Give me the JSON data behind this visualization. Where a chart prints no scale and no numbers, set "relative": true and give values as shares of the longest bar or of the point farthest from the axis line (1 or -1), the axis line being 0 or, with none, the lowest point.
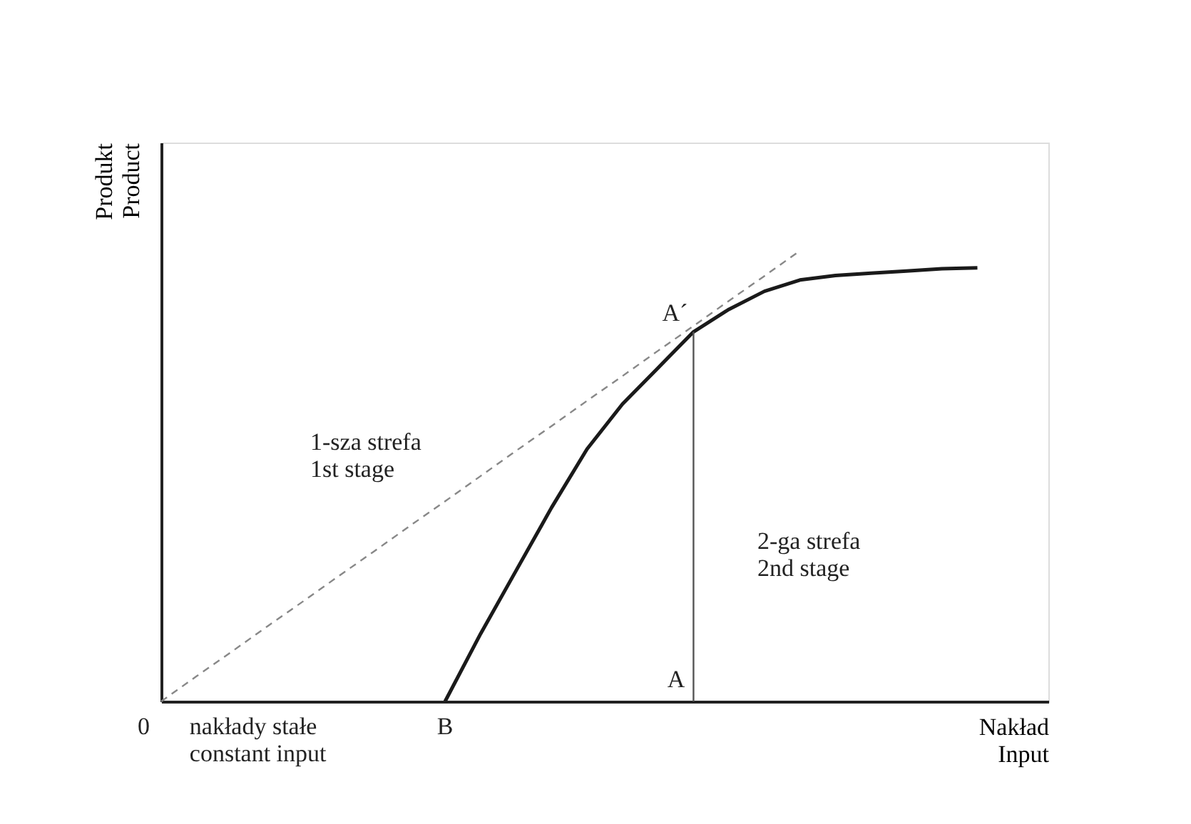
{
  "chart_data": {
    "type": "line",
    "relative": true,
    "xlabel": "Nakład\nInput",
    "ylabel": "Produkt\nProduct",
    "categories": [
      null,
      null,
      null,
      null,
      null,
      null,
      null,
      null,
      null,
      null,
      null,
      null,
      null,
      null,
      null,
      null,
      null,
      null,
      null,
      null,
      null,
      null,
      null,
      null,
      null
    ],
    "series": [
      {
        "color": "#1a1a1a",
        "line_style": "solid",
        "values": [
          null,
          null,
          null,
          null,
          null,
          null,
          null,
          null,
          0,
          0.15,
          0.29,
          0.43,
          0.56,
          0.66,
          0.74,
          0.82,
          0.87,
          0.91,
          0.935,
          0.945,
          0.95,
          0.955,
          0.96,
          0.962,
          null
        ]
      },
      {
        "color": "#888888",
        "line_style": "dashed",
        "values": [
          0,
          0.056,
          0.111,
          0.167,
          0.222,
          0.278,
          0.333,
          0.389,
          0.444,
          0.5,
          0.556,
          0.611,
          0.667,
          0.722,
          0.778,
          0.833,
          0.889,
          0.944,
          1,
          null,
          null,
          null,
          null,
          null,
          null
        ]
      }
    ],
    "annotations": [
      "0",
      "B",
      "A",
      "A´",
      "1-sza strefa\n1st stage",
      "2-ga strefa\n2nd stage",
      "nakłady stałe\nconstant input"
    ]
  }
}
